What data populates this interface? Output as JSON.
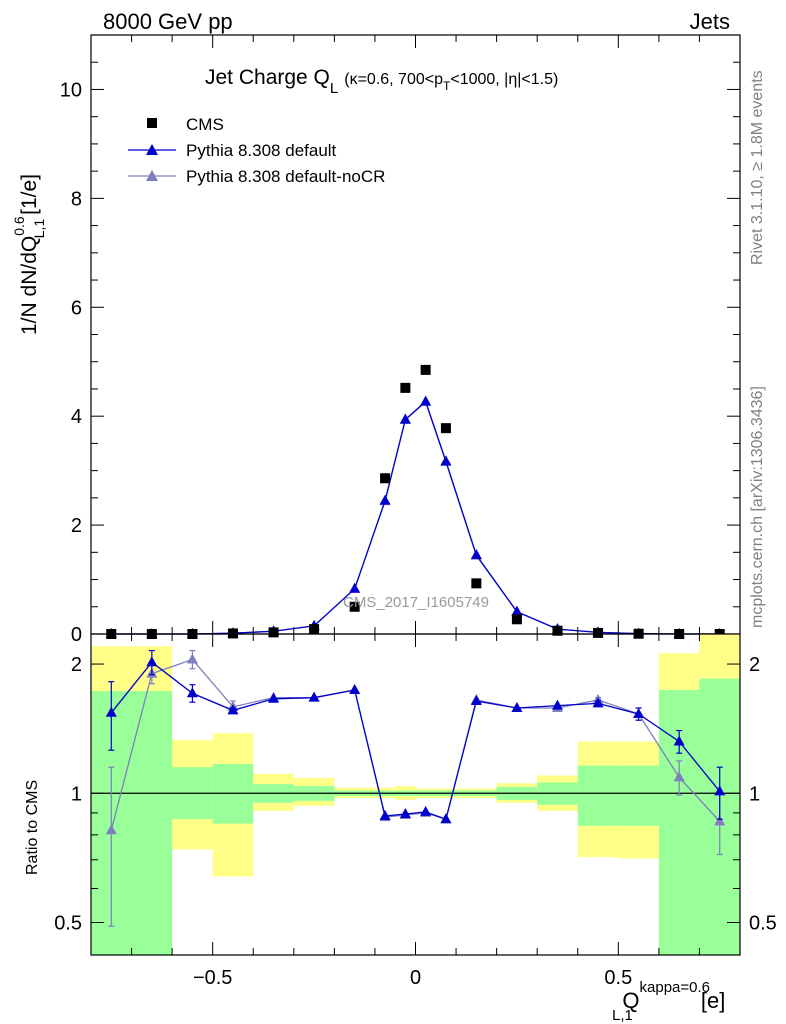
{
  "header": {
    "left": "8000 GeV pp",
    "right": "Jets"
  },
  "side_labels": {
    "rivet": "Rivet 3.1.10, ≥ 1.8M events",
    "mcplots": "mcplots.cern.ch [arXiv:1306.3436]"
  },
  "chart_data": [
    {
      "type": "scatter",
      "panel": "main",
      "title_main": "Jet Charge Q",
      "title_sub": "L",
      "title_cuts": "(κ=0.6, 700<p",
      "title_cuts_sub": "T",
      "title_cuts_end": "<1000, |η|<1.5)",
      "watermark": "CMS_2017_I1605749",
      "ylabel": "1/N dN/dQ",
      "ylabel_sup": "0.6",
      "ylabel_sub": "L,1",
      "ylabel_unit": "[1/e]",
      "ylim": [
        0,
        11
      ],
      "xlim": [
        -0.8,
        0.8
      ],
      "yticks": [
        "0",
        "2",
        "4",
        "6",
        "8",
        "10"
      ],
      "ytick_values": [
        0,
        2,
        4,
        6,
        8,
        10
      ],
      "legend_position": "top-left",
      "x": [
        -0.75,
        -0.65,
        -0.55,
        -0.45,
        -0.35,
        -0.25,
        -0.15,
        -0.075,
        -0.025,
        0.025,
        0.075,
        0.15,
        0.25,
        0.35,
        0.45,
        0.55,
        0.65,
        0.75
      ],
      "series": [
        {
          "name": "CMS",
          "marker": "square",
          "color": "#000000",
          "values": [
            0.0,
            0.0,
            0.0,
            0.01,
            0.03,
            0.09,
            0.5,
            2.86,
            4.52,
            4.85,
            3.78,
            0.93,
            0.27,
            0.06,
            0.02,
            0.005,
            0.0,
            0.0
          ]
        },
        {
          "name": "Pythia 8.308 default",
          "marker": "triangle",
          "color": "#0000cc",
          "values": [
            0.0,
            0.0,
            0.0,
            0.015,
            0.05,
            0.15,
            0.83,
            2.45,
            3.94,
            4.27,
            3.17,
            1.45,
            0.41,
            0.09,
            0.03,
            0.008,
            0.0,
            0.0
          ]
        },
        {
          "name": "Pythia 8.308 default-noCR",
          "marker": "triangle",
          "color": "#7f7fbf",
          "values": [
            0.0,
            0.0,
            0.0,
            0.015,
            0.05,
            0.15,
            0.83,
            2.44,
            3.93,
            4.26,
            3.16,
            1.44,
            0.41,
            0.09,
            0.03,
            0.008,
            0.0,
            0.0
          ]
        }
      ]
    },
    {
      "type": "line",
      "panel": "ratio",
      "ylabel": "Ratio to CMS",
      "xlabel": "Q",
      "xlabel_sup": "kappa=0.6",
      "xlabel_sub": "L,1",
      "xlabel_unit": "[e]",
      "ylim": [
        0.42,
        2.35
      ],
      "log_y": true,
      "xticks": [
        "−0.5",
        "0",
        "0.5"
      ],
      "xtick_values": [
        -0.5,
        0,
        0.5
      ],
      "yticks": [
        "0.5",
        "1",
        "2"
      ],
      "ytick_values": [
        0.5,
        1,
        2
      ],
      "x": [
        -0.75,
        -0.65,
        -0.55,
        -0.45,
        -0.35,
        -0.25,
        -0.15,
        -0.075,
        -0.025,
        0.025,
        0.075,
        0.15,
        0.25,
        0.35,
        0.45,
        0.55,
        0.65,
        0.75
      ],
      "bands": [
        {
          "lo": -0.8,
          "hi": -0.6,
          "y1_lo": 0.42,
          "y1_hi": 1.73,
          "y2_lo": 0.42,
          "y2_hi": 2.2
        },
        {
          "lo": -0.6,
          "hi": -0.5,
          "y1_lo": 0.87,
          "y1_hi": 1.15,
          "y2_lo": 0.74,
          "y2_hi": 1.33
        },
        {
          "lo": -0.5,
          "hi": -0.4,
          "y1_lo": 0.85,
          "y1_hi": 1.17,
          "y2_lo": 0.64,
          "y2_hi": 1.38
        },
        {
          "lo": -0.4,
          "hi": -0.3,
          "y1_lo": 0.95,
          "y1_hi": 1.05,
          "y2_lo": 0.91,
          "y2_hi": 1.11
        },
        {
          "lo": -0.3,
          "hi": -0.2,
          "y1_lo": 0.96,
          "y1_hi": 1.04,
          "y2_lo": 0.935,
          "y2_hi": 1.085
        },
        {
          "lo": -0.2,
          "hi": -0.1,
          "y1_lo": 0.985,
          "y1_hi": 1.015,
          "y2_lo": 0.975,
          "y2_hi": 1.03
        },
        {
          "lo": -0.1,
          "hi": -0.05,
          "y1_lo": 0.985,
          "y1_hi": 1.015,
          "y2_lo": 0.975,
          "y2_hi": 1.03
        },
        {
          "lo": -0.05,
          "hi": 0.0,
          "y1_lo": 0.985,
          "y1_hi": 1.015,
          "y2_lo": 0.965,
          "y2_hi": 1.04
        },
        {
          "lo": 0.0,
          "hi": 0.05,
          "y1_lo": 0.985,
          "y1_hi": 1.015,
          "y2_lo": 0.975,
          "y2_hi": 1.025
        },
        {
          "lo": 0.05,
          "hi": 0.1,
          "y1_lo": 0.985,
          "y1_hi": 1.015,
          "y2_lo": 0.975,
          "y2_hi": 1.025
        },
        {
          "lo": 0.1,
          "hi": 0.2,
          "y1_lo": 0.985,
          "y1_hi": 1.015,
          "y2_lo": 0.975,
          "y2_hi": 1.025
        },
        {
          "lo": 0.2,
          "hi": 0.3,
          "y1_lo": 0.965,
          "y1_hi": 1.035,
          "y2_lo": 0.95,
          "y2_hi": 1.055
        },
        {
          "lo": 0.3,
          "hi": 0.4,
          "y1_lo": 0.94,
          "y1_hi": 1.06,
          "y2_lo": 0.91,
          "y2_hi": 1.1
        },
        {
          "lo": 0.4,
          "hi": 0.5,
          "y1_lo": 0.84,
          "y1_hi": 1.16,
          "y2_lo": 0.71,
          "y2_hi": 1.32
        },
        {
          "lo": 0.5,
          "hi": 0.6,
          "y1_lo": 0.84,
          "y1_hi": 1.16,
          "y2_lo": 0.705,
          "y2_hi": 1.32
        },
        {
          "lo": 0.6,
          "hi": 0.7,
          "y1_lo": 0.42,
          "y1_hi": 1.74,
          "y2_lo": 0.42,
          "y2_hi": 2.12
        },
        {
          "lo": 0.7,
          "hi": 0.8,
          "y1_lo": 0.42,
          "y1_hi": 1.85,
          "y2_lo": 0.42,
          "y2_hi": 2.35
        }
      ],
      "band_colors": {
        "inner": "#99ff99",
        "outer": "#ffff88"
      },
      "series": [
        {
          "name": "Pythia 8.308 default",
          "color": "#0000cc",
          "values": [
            1.54,
            2.02,
            1.71,
            1.56,
            1.66,
            1.67,
            1.74,
            0.885,
            0.895,
            0.905,
            0.87,
            1.64,
            1.58,
            1.6,
            1.62,
            1.53,
            1.32,
            1.01
          ],
          "err": [
            0.28,
            0.13,
            0.08,
            0.02,
            0.01,
            0.01,
            0.01,
            0.004,
            0.004,
            0.004,
            0.004,
            0.01,
            0.01,
            0.01,
            0.02,
            0.05,
            0.08,
            0.14
          ]
        },
        {
          "name": "Pythia 8.308 default-noCR",
          "color": "#7f7fbf",
          "values": [
            0.82,
            1.9,
            2.05,
            1.59,
            1.67,
            1.67,
            1.74,
            0.88,
            0.89,
            0.9,
            0.87,
            1.65,
            1.58,
            1.58,
            1.65,
            1.53,
            1.09,
            0.86
          ],
          "err": [
            0.33,
            0.1,
            0.1,
            0.05,
            0.01,
            0.01,
            0.01,
            0.004,
            0.004,
            0.004,
            0.004,
            0.01,
            0.01,
            0.01,
            0.02,
            0.05,
            0.1,
            0.14
          ]
        }
      ]
    }
  ]
}
